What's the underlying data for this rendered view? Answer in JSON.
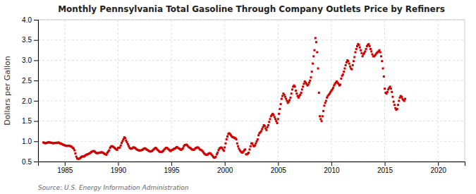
{
  "chart_data": {
    "type": "scatter",
    "title": "Monthly Pennsylvania Total Gasoline Through Company Outlets Price by Refiners",
    "ylabel": "Dollars per Gallon",
    "annotations": [
      "Source: U.S. Energy Information Administration"
    ],
    "color": "#cc0000",
    "marker": "square",
    "grid": true,
    "xlim": [
      1982.5,
      2022.5
    ],
    "xticks": [
      1985,
      1990,
      1995,
      2000,
      2005,
      2010,
      2015,
      2020
    ],
    "ylim": [
      0.5,
      4.0
    ],
    "yticks": [
      0.5,
      {
        "value": 1.0,
        "label": "1.0"
      },
      1.5,
      {
        "value": 2.0,
        "label": "2.0"
      },
      2.5,
      {
        "value": 3.0,
        "label": "3.0"
      },
      3.5,
      {
        "value": 4.0,
        "label": "4.0"
      }
    ],
    "x": [
      1983.0,
      1983.083,
      1983.167,
      1983.25,
      1983.333,
      1983.417,
      1983.5,
      1983.583,
      1983.667,
      1983.75,
      1983.833,
      1983.917,
      1984.0,
      1984.083,
      1984.167,
      1984.25,
      1984.333,
      1984.417,
      1984.5,
      1984.583,
      1984.667,
      1984.75,
      1984.833,
      1984.917,
      1985.0,
      1985.083,
      1985.167,
      1985.25,
      1985.333,
      1985.417,
      1985.5,
      1985.583,
      1985.667,
      1985.75,
      1985.833,
      1985.917,
      1986.0,
      1986.083,
      1986.167,
      1986.25,
      1986.333,
      1986.417,
      1986.5,
      1986.583,
      1986.667,
      1986.75,
      1986.833,
      1986.917,
      1987.0,
      1987.083,
      1987.167,
      1987.25,
      1987.333,
      1987.417,
      1987.5,
      1987.583,
      1987.667,
      1987.75,
      1987.833,
      1987.917,
      1988.0,
      1988.083,
      1988.167,
      1988.25,
      1988.333,
      1988.417,
      1988.5,
      1988.583,
      1988.667,
      1988.75,
      1988.833,
      1988.917,
      1989.0,
      1989.083,
      1989.167,
      1989.25,
      1989.333,
      1989.417,
      1989.5,
      1989.583,
      1989.667,
      1989.75,
      1989.833,
      1989.917,
      1990.0,
      1990.083,
      1990.167,
      1990.25,
      1990.333,
      1990.417,
      1990.5,
      1990.583,
      1990.667,
      1990.75,
      1990.833,
      1990.917,
      1991.0,
      1991.083,
      1991.167,
      1991.25,
      1991.333,
      1991.417,
      1991.5,
      1991.583,
      1991.667,
      1991.75,
      1991.833,
      1991.917,
      1992.0,
      1992.083,
      1992.167,
      1992.25,
      1992.333,
      1992.417,
      1992.5,
      1992.583,
      1992.667,
      1992.75,
      1992.833,
      1992.917,
      1993.0,
      1993.083,
      1993.167,
      1993.25,
      1993.333,
      1993.417,
      1993.5,
      1993.583,
      1993.667,
      1993.75,
      1993.833,
      1993.917,
      1994.0,
      1994.083,
      1994.167,
      1994.25,
      1994.333,
      1994.417,
      1994.5,
      1994.583,
      1994.667,
      1994.75,
      1994.833,
      1994.917,
      1995.0,
      1995.083,
      1995.167,
      1995.25,
      1995.333,
      1995.417,
      1995.5,
      1995.583,
      1995.667,
      1995.75,
      1995.833,
      1995.917,
      1996.0,
      1996.083,
      1996.167,
      1996.25,
      1996.333,
      1996.417,
      1996.5,
      1996.583,
      1996.667,
      1996.75,
      1996.833,
      1996.917,
      1997.0,
      1997.083,
      1997.167,
      1997.25,
      1997.333,
      1997.417,
      1997.5,
      1997.583,
      1997.667,
      1997.75,
      1997.833,
      1997.917,
      1998.0,
      1998.083,
      1998.167,
      1998.25,
      1998.333,
      1998.417,
      1998.5,
      1998.583,
      1998.667,
      1998.75,
      1998.833,
      1998.917,
      1999.0,
      1999.083,
      1999.167,
      1999.25,
      1999.333,
      1999.417,
      1999.5,
      1999.583,
      1999.667,
      1999.75,
      1999.833,
      1999.917,
      2000.0,
      2000.083,
      2000.167,
      2000.25,
      2000.333,
      2000.417,
      2000.5,
      2000.583,
      2000.667,
      2000.75,
      2000.833,
      2000.917,
      2001.0,
      2001.083,
      2001.167,
      2001.25,
      2001.333,
      2001.417,
      2001.5,
      2001.583,
      2001.667,
      2001.75,
      2001.833,
      2001.917,
      2002.0,
      2002.083,
      2002.167,
      2002.25,
      2002.333,
      2002.417,
      2002.5,
      2002.583,
      2002.667,
      2002.75,
      2002.833,
      2002.917,
      2003.0,
      2003.083,
      2003.167,
      2003.25,
      2003.333,
      2003.417,
      2003.5,
      2003.583,
      2003.667,
      2003.75,
      2003.833,
      2003.917,
      2004.0,
      2004.083,
      2004.167,
      2004.25,
      2004.333,
      2004.417,
      2004.5,
      2004.583,
      2004.667,
      2004.75,
      2004.833,
      2004.917,
      2005.0,
      2005.083,
      2005.167,
      2005.25,
      2005.333,
      2005.417,
      2005.5,
      2005.583,
      2005.667,
      2005.75,
      2005.833,
      2005.917,
      2006.0,
      2006.083,
      2006.167,
      2006.25,
      2006.333,
      2006.417,
      2006.5,
      2006.583,
      2006.667,
      2006.75,
      2006.833,
      2006.917,
      2007.0,
      2007.083,
      2007.167,
      2007.25,
      2007.333,
      2007.417,
      2007.5,
      2007.583,
      2007.667,
      2007.75,
      2007.833,
      2007.917,
      2008.0,
      2008.083,
      2008.167,
      2008.25,
      2008.333,
      2008.417,
      2008.5,
      2008.583,
      2008.667,
      2008.75,
      2008.833,
      2008.917,
      2009.0,
      2009.083,
      2009.167,
      2009.25,
      2009.333,
      2009.417,
      2009.5,
      2009.583,
      2009.667,
      2009.75,
      2009.833,
      2009.917,
      2010.0,
      2010.083,
      2010.167,
      2010.25,
      2010.333,
      2010.417,
      2010.5,
      2010.583,
      2010.667,
      2010.75,
      2010.833,
      2010.917,
      2011.0,
      2011.083,
      2011.167,
      2011.25,
      2011.333,
      2011.417,
      2011.5,
      2011.583,
      2011.667,
      2011.75,
      2011.833,
      2011.917,
      2012.0,
      2012.083,
      2012.167,
      2012.25,
      2012.333,
      2012.417,
      2012.5,
      2012.583,
      2012.667,
      2012.75,
      2012.833,
      2012.917,
      2013.0,
      2013.083,
      2013.167,
      2013.25,
      2013.333,
      2013.417,
      2013.5,
      2013.583,
      2013.667,
      2013.75,
      2013.833,
      2013.917,
      2014.0,
      2014.083,
      2014.167,
      2014.25,
      2014.333,
      2014.417,
      2014.5,
      2014.583,
      2014.667,
      2014.75,
      2014.833,
      2014.917,
      2015.0,
      2015.083,
      2015.167,
      2015.25,
      2015.333,
      2015.417,
      2015.5,
      2015.583,
      2015.667,
      2015.75,
      2015.833,
      2015.917,
      2016.0,
      2016.083,
      2016.167,
      2016.25,
      2016.333,
      2016.417,
      2016.5,
      2016.583,
      2016.667,
      2016.75,
      2016.833,
      2016.917
    ],
    "values": [
      0.972,
      0.962,
      0.95,
      0.958,
      0.96,
      0.972,
      0.975,
      0.972,
      0.968,
      0.962,
      0.958,
      0.952,
      0.955,
      0.962,
      0.96,
      0.958,
      0.968,
      0.97,
      0.958,
      0.945,
      0.94,
      0.93,
      0.918,
      0.908,
      0.9,
      0.892,
      0.885,
      0.888,
      0.888,
      0.89,
      0.882,
      0.875,
      0.862,
      0.84,
      0.82,
      0.778,
      0.7,
      0.622,
      0.578,
      0.565,
      0.568,
      0.58,
      0.6,
      0.618,
      0.628,
      0.622,
      0.628,
      0.648,
      0.668,
      0.672,
      0.682,
      0.692,
      0.702,
      0.718,
      0.738,
      0.748,
      0.758,
      0.758,
      0.742,
      0.718,
      0.708,
      0.708,
      0.712,
      0.718,
      0.722,
      0.728,
      0.728,
      0.718,
      0.702,
      0.688,
      0.678,
      0.668,
      0.718,
      0.748,
      0.778,
      0.838,
      0.868,
      0.88,
      0.872,
      0.858,
      0.838,
      0.818,
      0.8,
      0.788,
      0.838,
      0.838,
      0.848,
      0.898,
      0.958,
      1.002,
      1.048,
      1.098,
      1.078,
      1.018,
      0.978,
      0.928,
      0.878,
      0.838,
      0.818,
      0.818,
      0.828,
      0.848,
      0.848,
      0.838,
      0.818,
      0.798,
      0.788,
      0.778,
      0.772,
      0.772,
      0.778,
      0.788,
      0.798,
      0.818,
      0.828,
      0.818,
      0.798,
      0.788,
      0.772,
      0.758,
      0.748,
      0.748,
      0.758,
      0.778,
      0.798,
      0.818,
      0.838,
      0.828,
      0.798,
      0.778,
      0.758,
      0.738,
      0.738,
      0.738,
      0.748,
      0.768,
      0.798,
      0.818,
      0.838,
      0.838,
      0.818,
      0.798,
      0.778,
      0.758,
      0.778,
      0.788,
      0.798,
      0.818,
      0.818,
      0.838,
      0.858,
      0.848,
      0.828,
      0.818,
      0.798,
      0.788,
      0.808,
      0.828,
      0.878,
      0.908,
      0.908,
      0.918,
      0.898,
      0.868,
      0.848,
      0.838,
      0.818,
      0.798,
      0.798,
      0.788,
      0.798,
      0.828,
      0.838,
      0.848,
      0.848,
      0.828,
      0.798,
      0.788,
      0.778,
      0.758,
      0.728,
      0.698,
      0.678,
      0.668,
      0.668,
      0.678,
      0.698,
      0.708,
      0.698,
      0.678,
      0.648,
      0.618,
      0.598,
      0.598,
      0.618,
      0.678,
      0.718,
      0.778,
      0.818,
      0.838,
      0.848,
      0.838,
      0.798,
      0.768,
      0.848,
      0.948,
      1.048,
      1.118,
      1.178,
      1.198,
      1.178,
      1.148,
      1.118,
      1.098,
      1.098,
      1.078,
      1.078,
      1.048,
      0.948,
      0.878,
      0.818,
      0.778,
      0.748,
      0.728,
      0.718,
      0.748,
      0.778,
      0.798,
      0.678,
      0.678,
      0.698,
      0.718,
      0.798,
      0.878,
      0.948,
      0.948,
      0.898,
      0.878,
      0.898,
      0.948,
      0.998,
      1.048,
      1.148,
      1.198,
      1.218,
      1.248,
      1.298,
      1.348,
      1.398,
      1.378,
      1.318,
      1.278,
      1.348,
      1.398,
      1.478,
      1.548,
      1.618,
      1.648,
      1.678,
      1.648,
      1.598,
      1.548,
      1.498,
      1.448,
      1.548,
      1.678,
      1.798,
      1.918,
      2.048,
      2.118,
      2.178,
      2.148,
      2.098,
      2.048,
      1.998,
      1.948,
      1.978,
      2.018,
      2.078,
      2.178,
      2.278,
      2.348,
      2.378,
      2.348,
      2.248,
      2.178,
      2.118,
      2.078,
      2.118,
      2.148,
      2.198,
      2.278,
      2.348,
      2.418,
      2.478,
      2.448,
      2.418,
      2.378,
      2.398,
      2.448,
      2.498,
      2.578,
      2.718,
      2.918,
      3.098,
      3.248,
      3.548,
      3.448,
      3.198,
      2.798,
      2.198,
      1.618,
      1.548,
      1.498,
      1.618,
      1.748,
      1.878,
      1.948,
      1.998,
      2.078,
      2.118,
      2.148,
      2.178,
      2.218,
      2.248,
      2.278,
      2.318,
      2.378,
      2.418,
      2.448,
      2.478,
      2.448,
      2.418,
      2.378,
      2.398,
      2.548,
      2.618,
      2.648,
      2.718,
      2.798,
      2.878,
      2.948,
      2.998,
      2.978,
      2.918,
      2.848,
      2.798,
      2.778,
      2.878,
      2.978,
      3.078,
      3.198,
      3.278,
      3.348,
      3.398,
      3.378,
      3.318,
      3.248,
      3.178,
      3.098,
      3.148,
      3.178,
      3.218,
      3.278,
      3.348,
      3.378,
      3.398,
      3.348,
      3.278,
      3.218,
      3.148,
      3.098,
      3.098,
      3.118,
      3.148,
      3.178,
      3.198,
      3.218,
      3.248,
      3.198,
      3.098,
      2.978,
      2.798,
      2.598,
      2.298,
      2.198,
      2.178,
      2.218,
      2.278,
      2.318,
      2.348,
      2.298,
      2.218,
      2.098,
      1.978,
      1.898,
      1.818,
      1.778,
      1.798,
      1.898,
      1.998,
      2.078,
      2.118,
      2.098,
      2.048,
      2.018,
      1.998,
      2.048
    ]
  }
}
